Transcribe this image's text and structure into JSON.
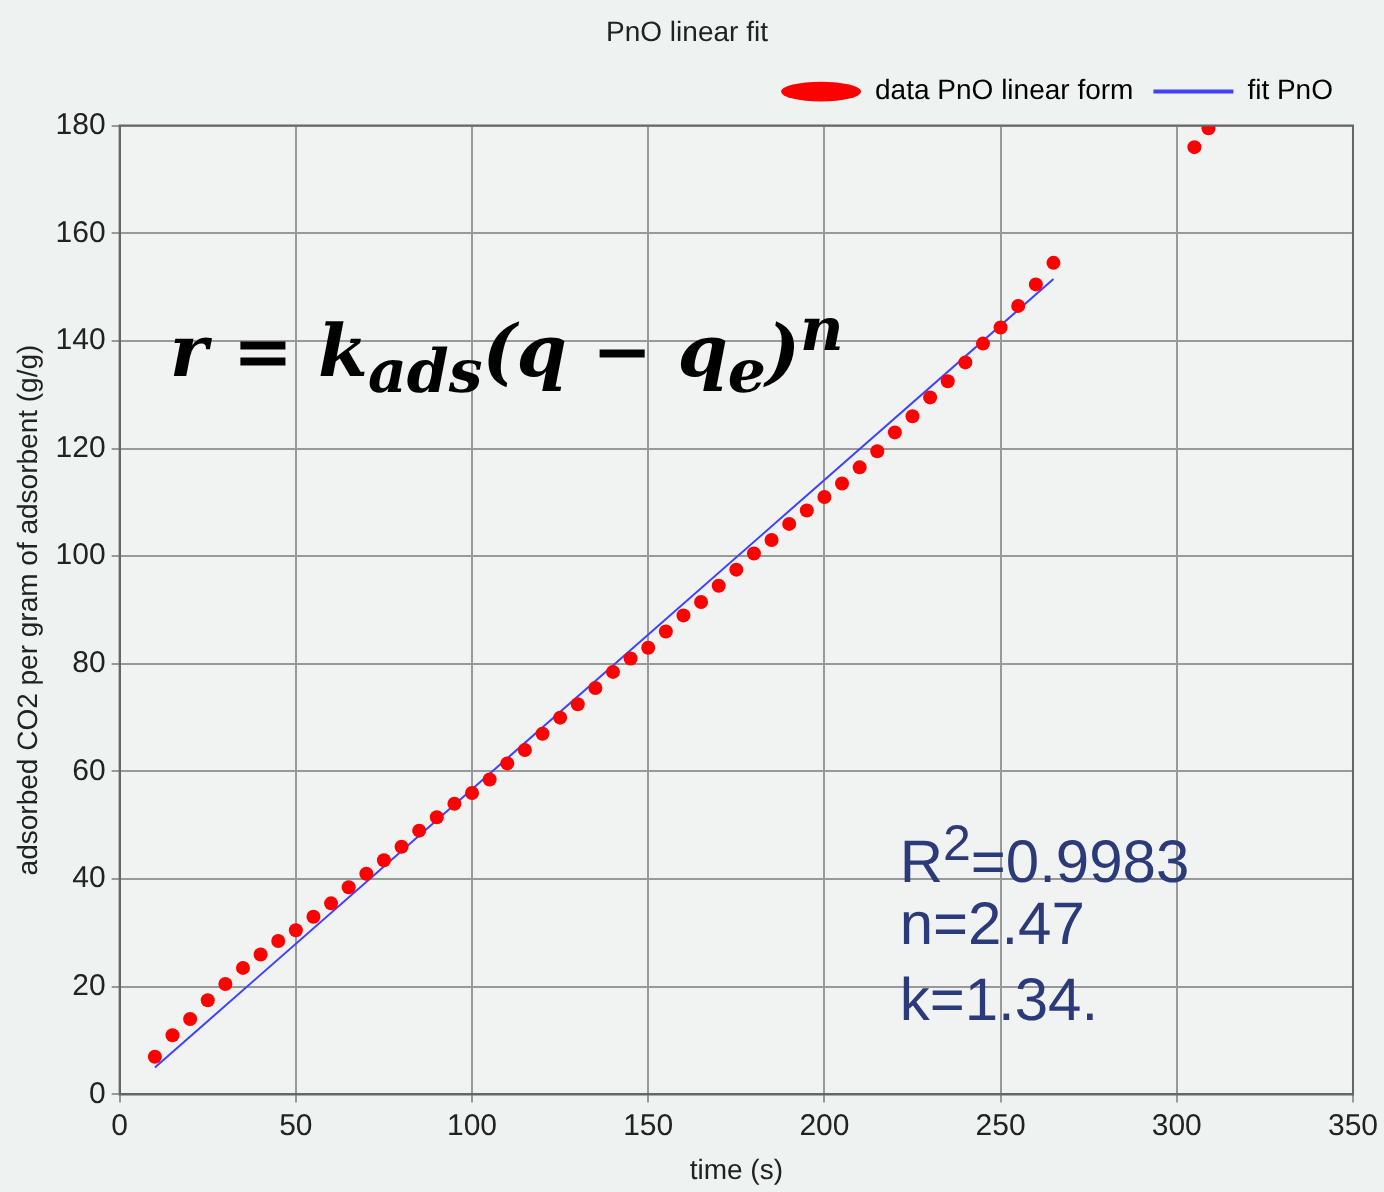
{
  "chart_data": {
    "type": "scatter",
    "title": "PnO linear fit",
    "xlabel": "time (s)",
    "ylabel": "adsorbed CO2 per gram of adsorbent (g/g)",
    "xlim": [
      0,
      350
    ],
    "xticks": [
      0,
      50,
      100,
      150,
      200,
      250,
      300,
      350
    ],
    "ylim": [
      0,
      180
    ],
    "yticks": [
      0,
      20,
      40,
      60,
      80,
      100,
      120,
      140,
      160,
      180
    ],
    "grid": true,
    "legend": "top right",
    "series": [
      {
        "name": "data PnO linear form",
        "type": "scatter",
        "marker": "circle",
        "color": "#ff0000",
        "x": [
          10,
          15,
          20,
          25,
          30,
          35,
          40,
          45,
          50,
          55,
          60,
          65,
          70,
          75,
          80,
          85,
          90,
          95,
          100,
          105,
          110,
          115,
          120,
          125,
          130,
          135,
          140,
          145,
          150,
          155,
          160,
          165,
          170,
          175,
          180,
          185,
          190,
          195,
          200,
          205,
          210,
          215,
          220,
          225,
          230,
          235,
          240,
          245,
          250,
          255,
          260,
          265,
          305,
          309
        ],
        "values": [
          7,
          11,
          14,
          17.5,
          20.5,
          23.5,
          26,
          28.5,
          30.5,
          33,
          35.5,
          38.5,
          41,
          43.5,
          46,
          49,
          51.5,
          54,
          56,
          58.5,
          61.5,
          64,
          67,
          70,
          72.5,
          75.5,
          78.5,
          81,
          83,
          86,
          89,
          91.5,
          94.5,
          97.5,
          100.5,
          103,
          106,
          108.5,
          111,
          113.5,
          116.5,
          119.5,
          123,
          126,
          129.5,
          132.5,
          136,
          139.5,
          142.5,
          146.5,
          150.5,
          154.5,
          176,
          179.5
        ]
      },
      {
        "name": "fit PnO",
        "type": "line",
        "marker": "none",
        "line_style": "solid",
        "color": "#4040ff",
        "x": [
          10,
          265
        ],
        "values": [
          5,
          151.5
        ]
      }
    ],
    "annotations": [
      "r = k$_{ads}$(q − q$_{e}$)$^{n}$",
      "R$^{2}$=0.9983",
      "n=2.47",
      "k=1.34."
    ]
  }
}
